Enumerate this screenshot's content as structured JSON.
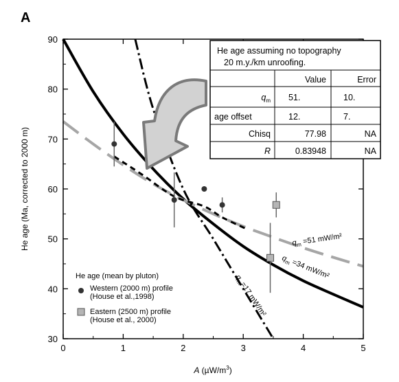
{
  "chart_data": {
    "type": "scatter",
    "panel_label": "A",
    "xlabel": "A (µW/m³)",
    "ylabel": "He age (Ma, corrected to 2000 m)",
    "xlim": [
      0,
      5
    ],
    "ylim": [
      30,
      90
    ],
    "xticks": [
      "0",
      "1",
      "2",
      "3",
      "4",
      "5"
    ],
    "yticks": [
      "30",
      "40",
      "50",
      "60",
      "70",
      "80",
      "90"
    ],
    "grid": false,
    "legend_title": "He age (mean by pluton)",
    "legend": [
      {
        "name": "Western (2000 m) profile",
        "ref": "(House et al.,1998)",
        "marker": "circle",
        "color": "#333333"
      },
      {
        "name": "Eastern (2500 m) profile",
        "ref": "(House et al., 2000)",
        "marker": "square",
        "color": "#b5b5b5"
      }
    ],
    "series": [
      {
        "name": "Western (2000 m) profile",
        "marker": "circle",
        "x": [
          0.85,
          1.85,
          2.35,
          2.65
        ],
        "y": [
          69,
          57.8,
          60,
          56.8
        ],
        "err": [
          4.5,
          5.5,
          0,
          1.5
        ]
      },
      {
        "name": "Eastern (2500 m) profile",
        "marker": "square",
        "x": [
          3.45,
          3.55
        ],
        "y": [
          46.2,
          56.8
        ],
        "err": [
          7,
          2.5
        ]
      }
    ],
    "curves": [
      {
        "label": "q",
        "label_sub": "m",
        "label_rest": " =34 mW/m²",
        "style": "solid-thick",
        "color": "#000000",
        "x": [
          0,
          0.5,
          1,
          1.5,
          2,
          2.5,
          3,
          3.5,
          4,
          4.5,
          5
        ],
        "y": [
          90,
          79.5,
          71,
          64,
          58,
          53,
          48.5,
          44.8,
          41.6,
          38.9,
          36.3
        ]
      },
      {
        "label": "q",
        "label_sub": "m",
        "label_rest": " =51 mW/m²",
        "style": "long-dash",
        "color": "#a6a6a6",
        "x": [
          0,
          0.5,
          1,
          1.5,
          2,
          2.5,
          3,
          3.5,
          4,
          4.5,
          5
        ],
        "y": [
          73.5,
          69,
          64.8,
          61,
          57.8,
          55,
          52.5,
          50.3,
          48.2,
          46.3,
          44.5
        ]
      },
      {
        "label": "q",
        "label_sub": "m",
        "label_rest": "=17 mW/m²",
        "style": "dash-dot",
        "color": "#000000",
        "x": [
          1.2,
          1.5,
          2,
          2.5,
          3,
          3.5
        ],
        "y": [
          90,
          76,
          60,
          50,
          40,
          30
        ]
      },
      {
        "label": "",
        "style": "short-dash",
        "color": "#000000",
        "x": [
          0.85,
          1.3,
          1.85,
          2.35,
          2.65,
          3.05
        ],
        "y": [
          66.5,
          63,
          58.5,
          56.5,
          54.3,
          52
        ]
      }
    ],
    "fit_table": {
      "title_line1": "He age assuming no topography",
      "title_line2": "20 m.y./km unroofing.",
      "headers": [
        "",
        "Value",
        "Error"
      ],
      "rows": [
        {
          "name": "q",
          "name_sub": "m",
          "value": "51.",
          "error": "10."
        },
        {
          "name": "age offset",
          "name_sub": "",
          "value": "12.",
          "error": "7."
        },
        {
          "name": "Chisq",
          "name_sub": "",
          "value": "77.98",
          "error": "NA"
        },
        {
          "name": "R",
          "name_sub": "",
          "value": "0.83948",
          "error": "NA"
        }
      ]
    }
  }
}
